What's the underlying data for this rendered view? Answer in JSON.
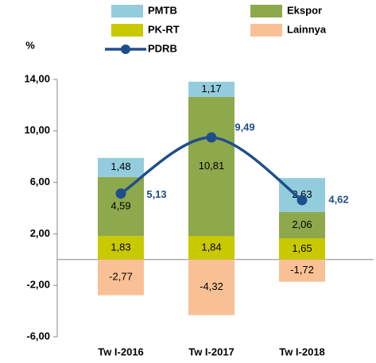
{
  "chart_data": {
    "type": "bar",
    "stacked": true,
    "y_axis_label": "%",
    "categories": [
      "Tw I-2016",
      "Tw I-2017",
      "Tw I-2018"
    ],
    "series": [
      {
        "name": "PK-RT",
        "type": "bar",
        "color": "#c9c900",
        "values": [
          1.83,
          1.84,
          1.65
        ],
        "value_labels": [
          "1,83",
          "1,84",
          "1,65"
        ]
      },
      {
        "name": "Ekspor",
        "type": "bar",
        "color": "#8ea84c",
        "values": [
          4.59,
          10.81,
          2.06
        ],
        "value_labels": [
          "4,59",
          "10,81",
          "2,06"
        ]
      },
      {
        "name": "PMTB",
        "type": "bar",
        "color": "#93cddd",
        "values": [
          1.48,
          1.17,
          2.63
        ],
        "value_labels": [
          "1,48",
          "1,17",
          "2,63"
        ]
      },
      {
        "name": "Lainnya",
        "type": "bar",
        "color": "#fac095",
        "values": [
          -2.77,
          -4.32,
          -1.72
        ],
        "value_labels": [
          "-2,77",
          "-4,32",
          "-1,72"
        ]
      },
      {
        "name": "PDRB",
        "type": "line",
        "color": "#1f4e8c",
        "values": [
          5.13,
          9.49,
          4.62
        ],
        "value_labels": [
          "5,13",
          "9,49",
          "4,62"
        ]
      }
    ],
    "ylim": [
      -6,
      14
    ],
    "yticks": [
      {
        "value": -6,
        "label": "-6,00"
      },
      {
        "value": -2,
        "label": "-2,00"
      },
      {
        "value": 2,
        "label": "2,00"
      },
      {
        "value": 6,
        "label": "6,00"
      },
      {
        "value": 10,
        "label": "10,00"
      },
      {
        "value": 14,
        "label": "14,00"
      }
    ],
    "legend": "top"
  }
}
